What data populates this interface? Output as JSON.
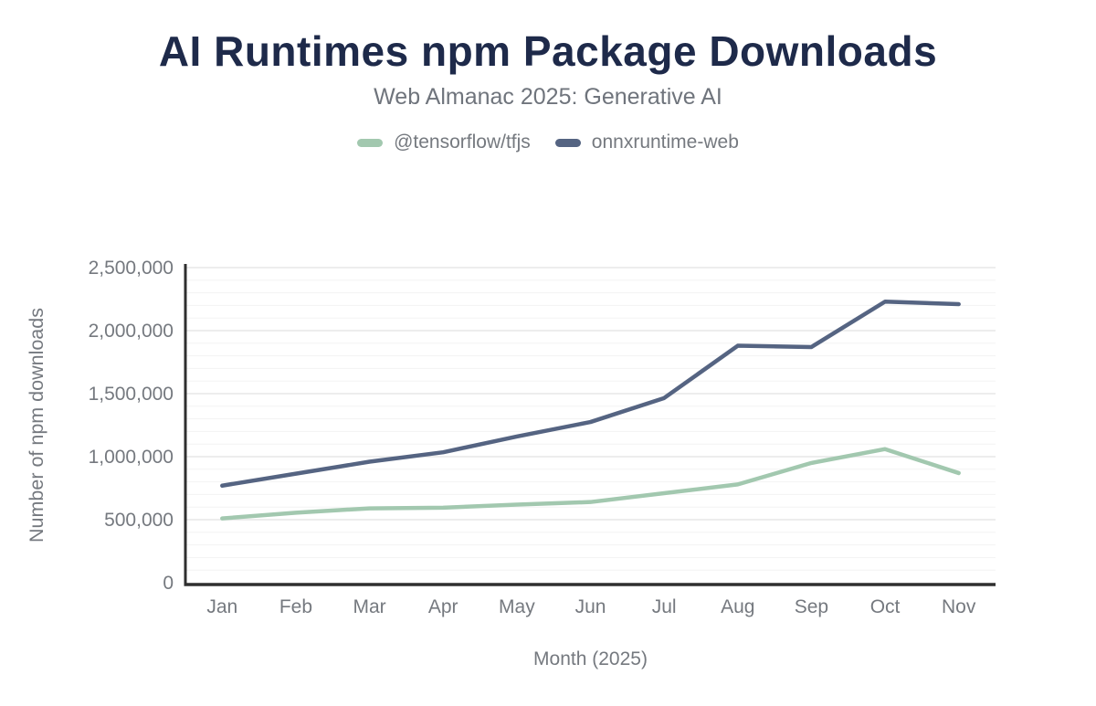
{
  "chart_data": {
    "type": "line",
    "title": "AI Runtimes npm Package Downloads",
    "subtitle": "Web Almanac 2025: Generative AI",
    "xlabel": "Month (2025)",
    "ylabel": "Number of npm downloads",
    "categories": [
      "Jan",
      "Feb",
      "Mar",
      "Apr",
      "May",
      "Jun",
      "Jul",
      "Aug",
      "Sep",
      "Oct",
      "Nov"
    ],
    "series": [
      {
        "name": "@tensorflow/tfjs",
        "color": "#a2c8af",
        "values": [
          510000,
          555000,
          590000,
          595000,
          620000,
          640000,
          710000,
          780000,
          950000,
          1060000,
          870000
        ]
      },
      {
        "name": "onnxruntime-web",
        "color": "#556482",
        "values": [
          770000,
          865000,
          960000,
          1035000,
          1160000,
          1275000,
          1465000,
          1880000,
          1870000,
          2230000,
          2210000
        ]
      }
    ],
    "ylim": [
      0,
      2500000
    ],
    "y_major_step": 500000,
    "y_minor_step": 100000,
    "y_tick_labels": [
      "0",
      "500,000",
      "1,000,000",
      "1,500,000",
      "2,000,000",
      "2,500,000"
    ],
    "legend_position": "top",
    "grid": "horizontal",
    "colors": {
      "title": "#1e2a4a",
      "text_muted": "#75797f",
      "axis": "#2f2f2f",
      "grid_major": "#e7e7e7",
      "grid_minor": "#f3f3f3",
      "background": "#ffffff"
    }
  }
}
